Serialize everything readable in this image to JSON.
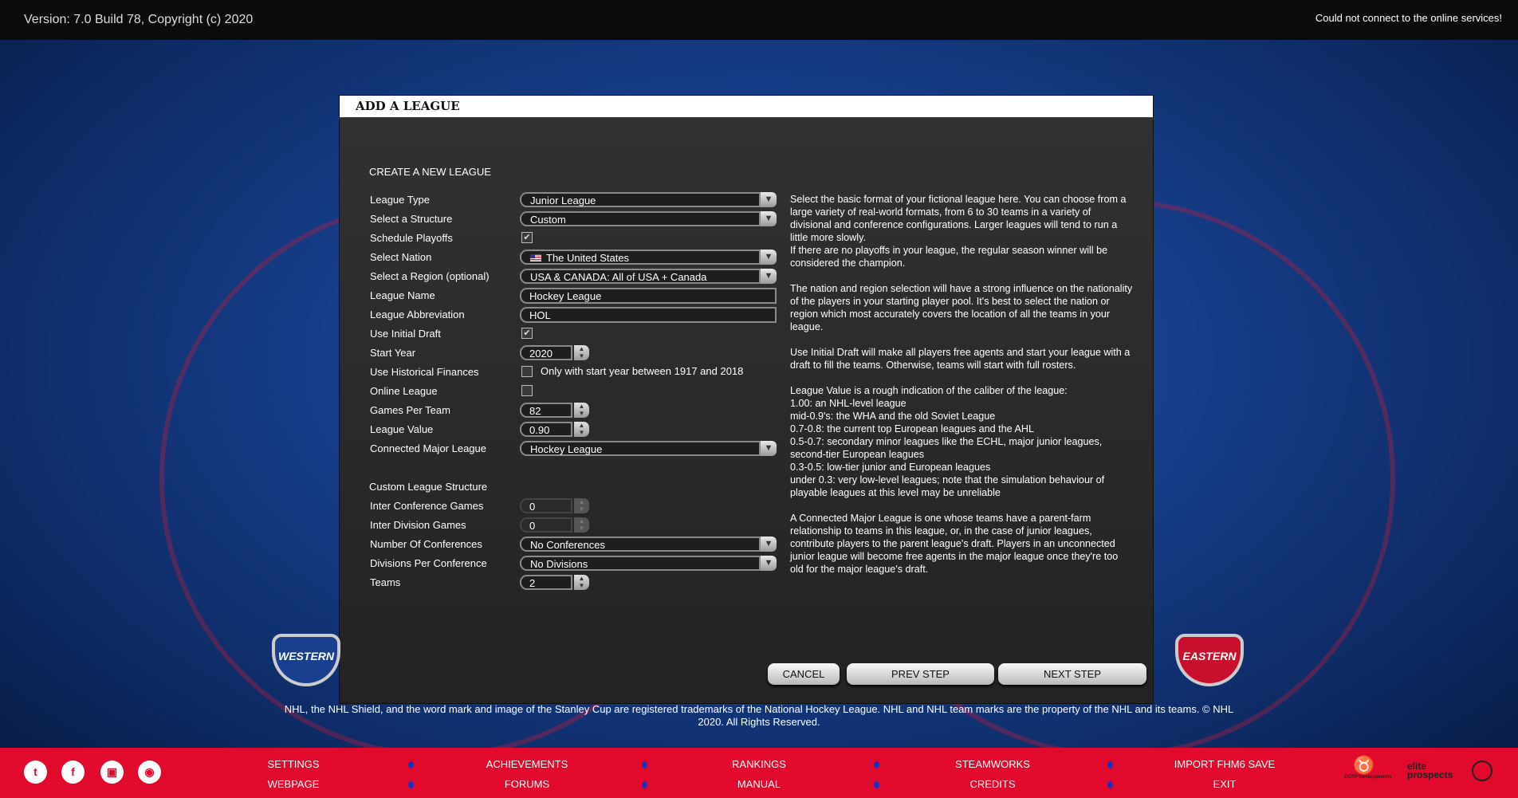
{
  "topbar": {
    "version": "Version: 7.0 Build 78, Copyright (c) 2020",
    "status": "Could not connect to the online services!"
  },
  "dialog": {
    "title": "ADD A LEAGUE",
    "section": "CREATE A NEW LEAGUE",
    "custom_section": "Custom League Structure",
    "fields": [
      {
        "label": "League Type",
        "type": "dropdown",
        "value": "Junior League"
      },
      {
        "label": "Select a Structure",
        "type": "dropdown",
        "value": "Custom"
      },
      {
        "label": "Schedule Playoffs",
        "type": "checkbox",
        "checked": true
      },
      {
        "label": "Select Nation",
        "type": "dropdown",
        "value": "The United States",
        "icon": "us-flag-icon"
      },
      {
        "label": "Select a Region (optional)",
        "type": "dropdown",
        "value": "USA & CANADA: All of USA + Canada"
      },
      {
        "label": "League Name",
        "type": "text",
        "value": "Hockey League"
      },
      {
        "label": "League Abbreviation",
        "type": "text",
        "value": "HOL"
      },
      {
        "label": "Use Initial Draft",
        "type": "checkbox",
        "checked": true
      },
      {
        "label": "Start Year",
        "type": "spinner",
        "value": "2020"
      },
      {
        "label": "Use Historical Finances",
        "type": "checkbox",
        "checked": false,
        "note": "Only with start year between 1917 and 2018"
      },
      {
        "label": "Online League",
        "type": "checkbox",
        "checked": false
      },
      {
        "label": "Games Per Team",
        "type": "spinner",
        "value": "82"
      },
      {
        "label": "League Value",
        "type": "spinner",
        "value": "0.90"
      },
      {
        "label": "Connected Major League",
        "type": "dropdown",
        "value": "Hockey League"
      }
    ],
    "custom_fields": [
      {
        "label": "Inter Conference Games",
        "type": "spinner",
        "value": "0",
        "disabled": true
      },
      {
        "label": "Inter Division Games",
        "type": "spinner",
        "value": "0",
        "disabled": true
      },
      {
        "label": "Number Of Conferences",
        "type": "dropdown",
        "value": "No Conferences"
      },
      {
        "label": "Divisions Per Conference",
        "type": "dropdown",
        "value": "No Divisions"
      },
      {
        "label": "Teams",
        "type": "spinner",
        "value": "2"
      }
    ],
    "help": [
      "Select the basic format of your fictional league here. You can choose from a large variety of real-world formats, from 6 to 30 teams in a variety of divisional and conference configurations. Larger leagues will tend to run a little more slowly.\nIf there are no playoffs in your league, the regular season winner will be considered the champion.",
      "The nation and region selection will have a strong influence on the nationality of the players in your starting player pool. It's best to select the nation or region which most accurately covers the location of all the teams in your league.",
      "Use Initial Draft will make all players free agents and start your league with a draft to fill the teams. Otherwise, teams will start with full rosters.",
      "League Value is a rough indication of the caliber of the league:\n1.00: an NHL-level league\nmid-0.9's: the WHA and the old Soviet League\n0.7-0.8: the current top European leagues and the AHL\n0.5-0.7: secondary minor leagues like the ECHL, major junior leagues, second-tier European leagues\n0.3-0.5: low-tier junior and European leagues\nunder 0.3: very low-level leagues; note that the simulation behaviour of playable leagues at this level may be unreliable",
      "A Connected Major League is one whose teams have a parent-farm relationship to teams in this league, or, in the case of junior leagues, contribute players to the parent league's draft. Players in an unconnected junior league will become free agents in the major league once they're too old for the major league's draft."
    ],
    "buttons": {
      "cancel": "CANCEL",
      "prev": "PREV STEP",
      "next": "NEXT STEP"
    }
  },
  "logos": {
    "west": "NHL WESTERN CONFERENCE",
    "east": "NHL EASTERN CONFERENCE"
  },
  "copyright": "NHL, the NHL Shield, and the word mark and image of the Stanley Cup are registered trademarks of the National Hockey League. NHL and NHL team marks are the property of the NHL and its teams. © NHL 2020. All Rights Reserved.",
  "footer": {
    "social": [
      "twitter-icon",
      "facebook-icon",
      "twitch-icon",
      "discord-icon"
    ],
    "menu": [
      [
        "SETTINGS",
        "WEBPAGE"
      ],
      [
        "ACHIEVEMENTS",
        "FORUMS"
      ],
      [
        "RANKINGS",
        "MANUAL"
      ],
      [
        "STEAMWORKS",
        "CREDITS"
      ],
      [
        "IMPORT FHM6 SAVE",
        "EXIT"
      ]
    ],
    "brands": [
      "OOTP Developments",
      "elite prospects",
      "sponsor"
    ]
  },
  "colors": {
    "footer": "#e10a2d",
    "dialog": "#2b2b2b",
    "dot": "#1a2fbf"
  }
}
